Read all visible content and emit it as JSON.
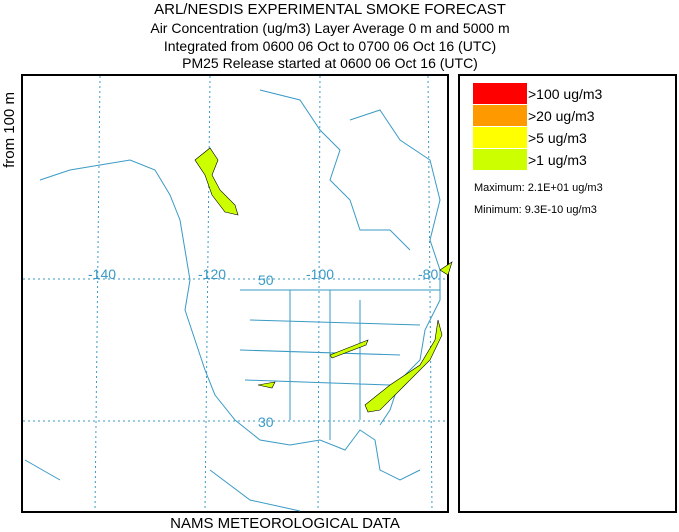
{
  "header": {
    "title": "ARL/NESDIS EXPERIMENTAL SMOKE FORECAST",
    "lines": [
      "Air Concentration (ug/m3) Layer Average    0 m and  5000 m",
      "Integrated from 0600 06 Oct to 0700 06 Oct 16 (UTC)",
      "PM25 Release started at 0600 06 Oct 16 (UTC)"
    ]
  },
  "side_label": "from  100 m",
  "map": {
    "lon_labels": [
      "-140",
      "-120",
      "-100",
      "-80"
    ],
    "lat_labels": [
      "50",
      "30"
    ]
  },
  "legend": {
    "entries": [
      {
        "label": ">100 ug/m3",
        "color": "#ff0000"
      },
      {
        "label": ">20 ug/m3",
        "color": "#ff9900"
      },
      {
        "label": ">5 ug/m3",
        "color": "#ffff00"
      },
      {
        "label": ">1 ug/m3",
        "color": "#ccff00"
      }
    ],
    "maximum": "Maximum: 2.1E+01 ug/m3",
    "minimum": "Minimum: 9.3E-10 ug/m3"
  },
  "footer": "NAMS METEOROLOGICAL DATA"
}
